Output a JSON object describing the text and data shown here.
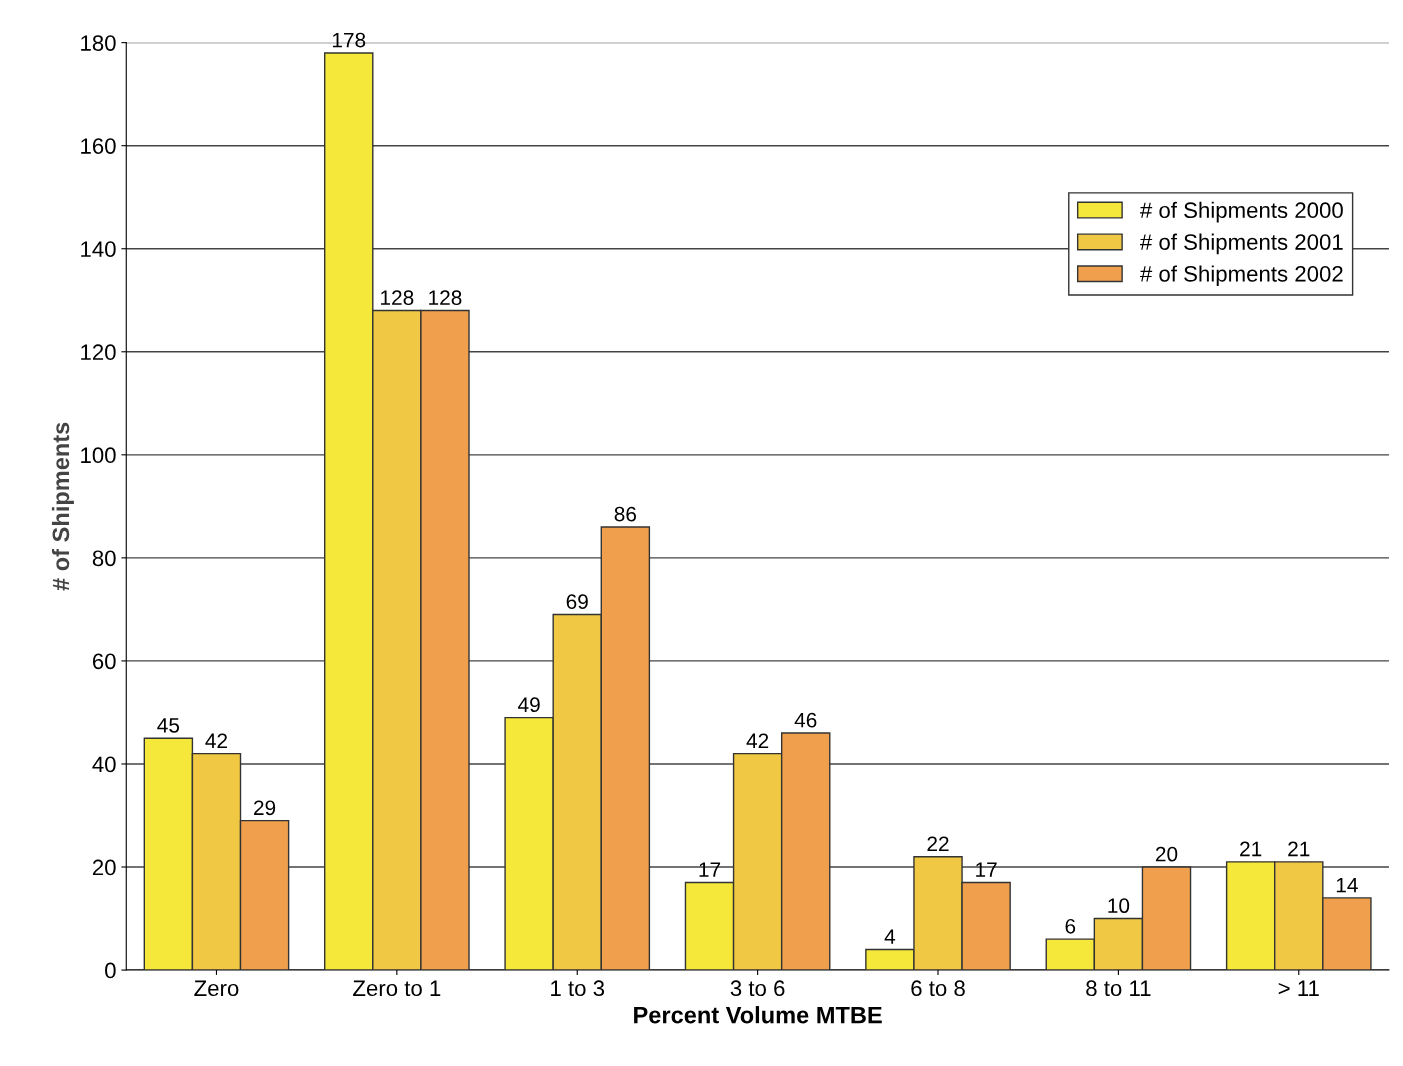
{
  "chart_data": {
    "type": "bar",
    "xlabel": "Percent Volume MTBE",
    "ylabel": "# of Shipments",
    "categories": [
      "Zero",
      "Zero to 1",
      "1 to 3",
      "3 to 6",
      "6 to 8",
      "8 to 11",
      "> 11"
    ],
    "series": [
      {
        "name": "# of Shipments 2000",
        "color": "#f5e83a",
        "values": [
          45,
          178,
          49,
          17,
          4,
          6,
          21
        ]
      },
      {
        "name": "# of Shipments 2001",
        "color": "#f0c843",
        "values": [
          42,
          128,
          69,
          42,
          22,
          10,
          21
        ]
      },
      {
        "name": "# of Shipments 2002",
        "color": "#f0a04c",
        "values": [
          29,
          128,
          86,
          46,
          17,
          20,
          14
        ]
      }
    ],
    "ylim": [
      0,
      180
    ],
    "yticks": [
      0,
      20,
      40,
      60,
      80,
      100,
      120,
      140,
      160,
      180
    ],
    "grid": "y",
    "legend": "top right",
    "data_labels": true
  }
}
